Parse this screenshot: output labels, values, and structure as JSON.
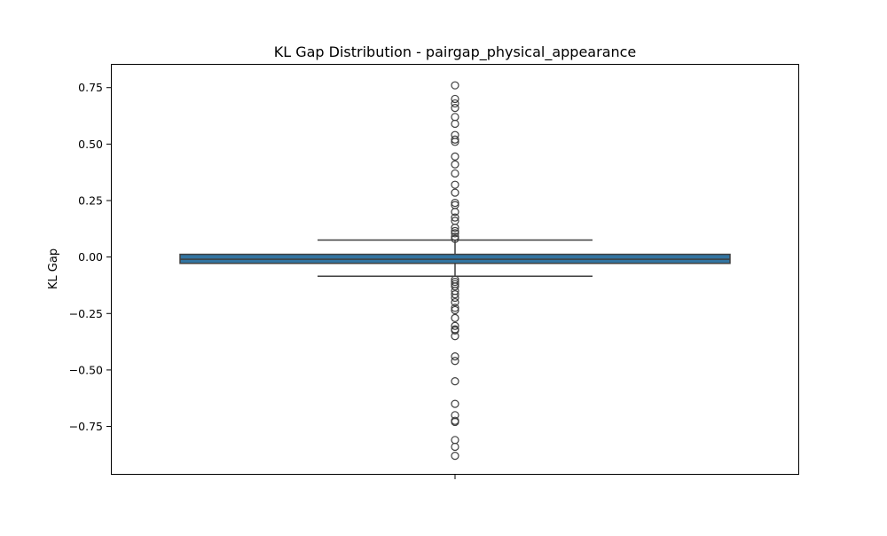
{
  "chart_data": {
    "type": "box",
    "title": "KL Gap Distribution - pairgap_physical_appearance",
    "xlabel": "",
    "ylabel": "KL Gap",
    "ylim": [
      -0.96,
      0.855
    ],
    "yticks": [
      0.75,
      0.5,
      0.25,
      0.0,
      -0.25,
      -0.5,
      -0.75
    ],
    "ytick_labels": [
      "0.75",
      "0.50",
      "0.25",
      "0.00",
      "−0.25",
      "−0.50",
      "−0.75"
    ],
    "grid": false,
    "box_color": "#3274a1",
    "box": {
      "q1": -0.028,
      "median": -0.01,
      "q3": 0.012,
      "whisker_low": -0.085,
      "whisker_high": 0.075
    },
    "outliers": [
      0.76,
      0.7,
      0.68,
      0.66,
      0.62,
      0.59,
      0.54,
      0.52,
      0.51,
      0.445,
      0.41,
      0.37,
      0.32,
      0.285,
      0.24,
      0.23,
      0.2,
      0.175,
      0.16,
      0.13,
      0.115,
      0.105,
      0.09,
      0.08,
      -0.1,
      -0.11,
      -0.12,
      -0.13,
      -0.15,
      -0.165,
      -0.18,
      -0.2,
      -0.225,
      -0.235,
      -0.27,
      -0.305,
      -0.32,
      -0.325,
      -0.35,
      -0.44,
      -0.46,
      -0.55,
      -0.65,
      -0.7,
      -0.725,
      -0.73,
      -0.81,
      -0.84,
      -0.88
    ]
  }
}
